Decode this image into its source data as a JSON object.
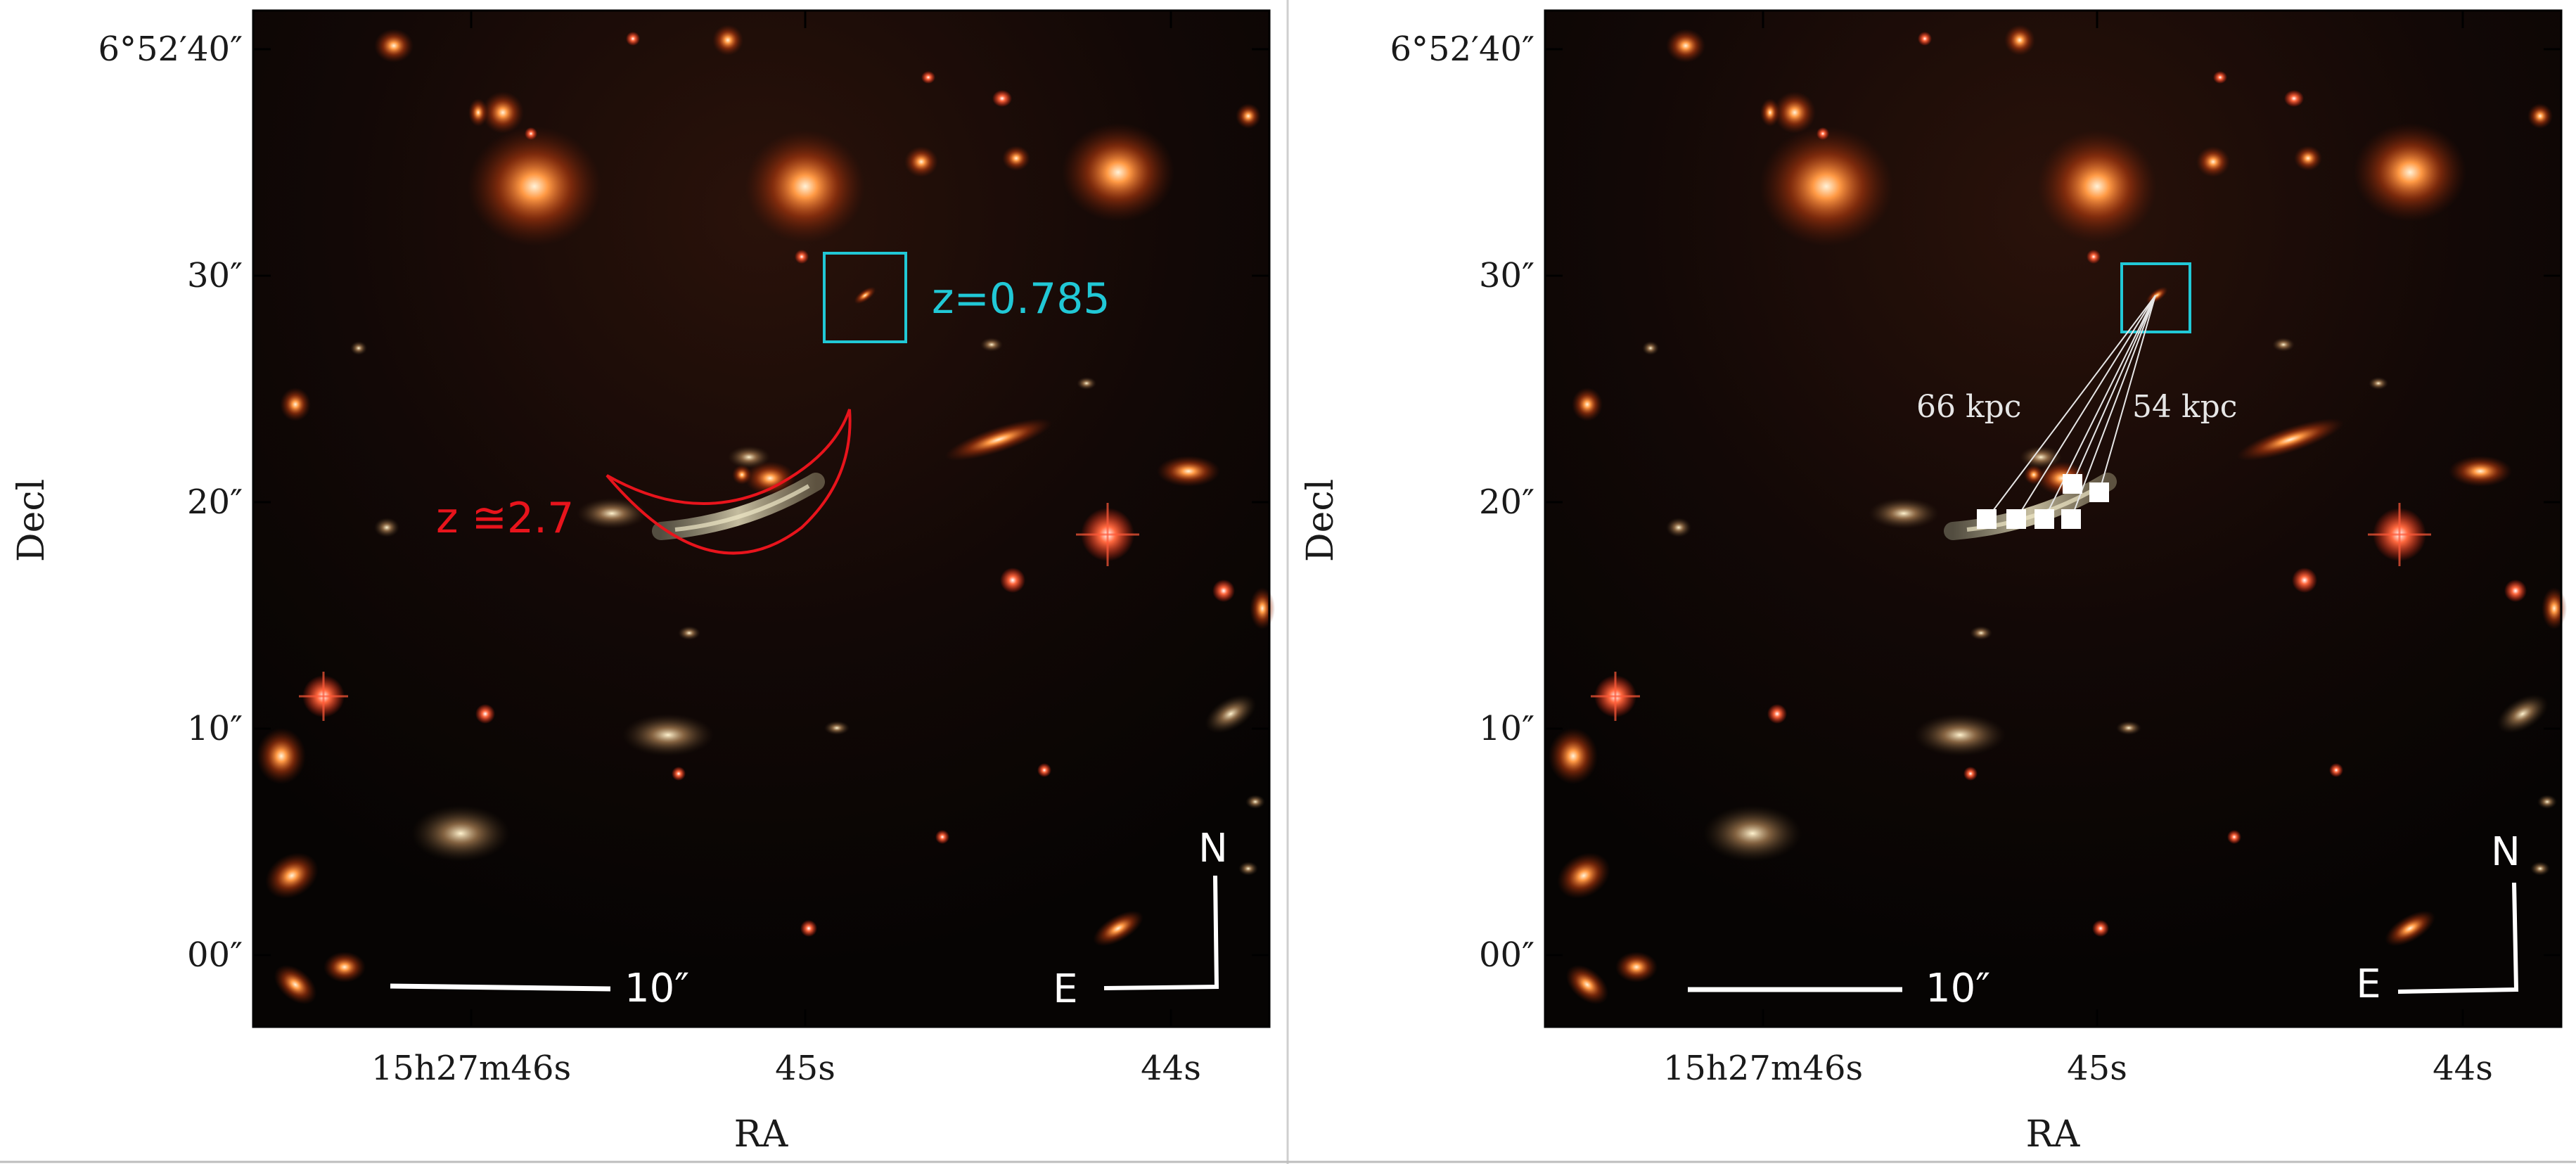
{
  "panels": [
    {
      "id": "left",
      "xlabel": "RA",
      "ylabel": "Decl",
      "xticks": [
        "15h27m46s",
        "45s",
        "44s"
      ],
      "yticks": [
        "6°52′40″",
        "30″",
        "20″",
        "10″",
        "00″"
      ],
      "annotations": {
        "box_label": "z=0.785",
        "arc_label": "z ≅2.7",
        "scalebar_label": "10″",
        "compass_n": "N",
        "compass_e": "E"
      },
      "colors": {
        "box": "#21c8d6",
        "arc": "#e8141c"
      }
    },
    {
      "id": "right",
      "xlabel": "RA",
      "ylabel": "Decl",
      "xticks": [
        "15h27m46s",
        "45s",
        "44s"
      ],
      "yticks": [
        "6°52′40″",
        "30″",
        "20″",
        "10″",
        "00″"
      ],
      "annotations": {
        "distance_left": "66 kpc",
        "distance_right": "54 kpc",
        "scalebar_label": "10″",
        "compass_n": "N",
        "compass_e": "E"
      },
      "colors": {
        "box": "#21c8d6"
      }
    }
  ]
}
